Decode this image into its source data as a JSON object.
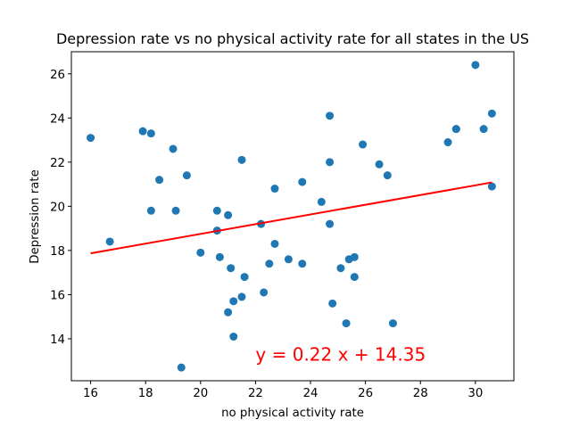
{
  "chart_data": {
    "type": "scatter",
    "title": "Depression rate vs no physical activity rate for all states in the US",
    "xlabel": "no physical activity rate",
    "ylabel": "Depression rate",
    "xlim": [
      15.3,
      31.4
    ],
    "ylim": [
      12.1,
      27.0
    ],
    "xticks": [
      16,
      18,
      20,
      22,
      24,
      26,
      28,
      30
    ],
    "yticks": [
      14,
      16,
      18,
      20,
      22,
      24,
      26
    ],
    "grid": false,
    "point_color": "#1f77b4",
    "points": [
      {
        "x": 16.0,
        "y": 23.1
      },
      {
        "x": 16.7,
        "y": 18.4
      },
      {
        "x": 17.9,
        "y": 23.4
      },
      {
        "x": 18.2,
        "y": 23.3
      },
      {
        "x": 18.5,
        "y": 21.2
      },
      {
        "x": 18.2,
        "y": 19.8
      },
      {
        "x": 19.0,
        "y": 22.6
      },
      {
        "x": 19.1,
        "y": 19.8
      },
      {
        "x": 19.5,
        "y": 21.4
      },
      {
        "x": 19.3,
        "y": 12.7
      },
      {
        "x": 20.0,
        "y": 17.9
      },
      {
        "x": 20.6,
        "y": 19.8
      },
      {
        "x": 20.6,
        "y": 18.9
      },
      {
        "x": 20.7,
        "y": 17.7
      },
      {
        "x": 21.0,
        "y": 19.6
      },
      {
        "x": 21.1,
        "y": 17.2
      },
      {
        "x": 21.0,
        "y": 15.2
      },
      {
        "x": 21.2,
        "y": 15.7
      },
      {
        "x": 21.2,
        "y": 14.1
      },
      {
        "x": 21.5,
        "y": 22.1
      },
      {
        "x": 21.5,
        "y": 15.9
      },
      {
        "x": 21.6,
        "y": 16.8
      },
      {
        "x": 22.2,
        "y": 19.2
      },
      {
        "x": 22.3,
        "y": 16.1
      },
      {
        "x": 22.5,
        "y": 17.4
      },
      {
        "x": 22.7,
        "y": 20.8
      },
      {
        "x": 22.7,
        "y": 18.3
      },
      {
        "x": 23.2,
        "y": 17.6
      },
      {
        "x": 23.7,
        "y": 21.1
      },
      {
        "x": 23.7,
        "y": 17.4
      },
      {
        "x": 24.4,
        "y": 20.2
      },
      {
        "x": 24.7,
        "y": 24.1
      },
      {
        "x": 24.7,
        "y": 22.0
      },
      {
        "x": 24.7,
        "y": 19.2
      },
      {
        "x": 24.8,
        "y": 15.6
      },
      {
        "x": 25.1,
        "y": 17.2
      },
      {
        "x": 25.3,
        "y": 14.7
      },
      {
        "x": 25.4,
        "y": 17.6
      },
      {
        "x": 25.6,
        "y": 17.7
      },
      {
        "x": 25.6,
        "y": 16.8
      },
      {
        "x": 25.9,
        "y": 22.8
      },
      {
        "x": 26.5,
        "y": 21.9
      },
      {
        "x": 26.8,
        "y": 21.4
      },
      {
        "x": 27.0,
        "y": 14.7
      },
      {
        "x": 29.0,
        "y": 22.9
      },
      {
        "x": 29.3,
        "y": 23.5
      },
      {
        "x": 29.3,
        "y": 23.5
      },
      {
        "x": 30.0,
        "y": 26.4
      },
      {
        "x": 30.3,
        "y": 23.5
      },
      {
        "x": 30.6,
        "y": 24.2
      },
      {
        "x": 30.6,
        "y": 20.9
      }
    ],
    "fit_line": {
      "slope": 0.22,
      "intercept": 14.35,
      "x_start": 16.0,
      "x_end": 30.6,
      "color": "#ff0000"
    },
    "annotation": {
      "text": "y = 0.22 x + 14.35",
      "x": 22.0,
      "y": 13.0,
      "color": "#ff0000"
    }
  }
}
